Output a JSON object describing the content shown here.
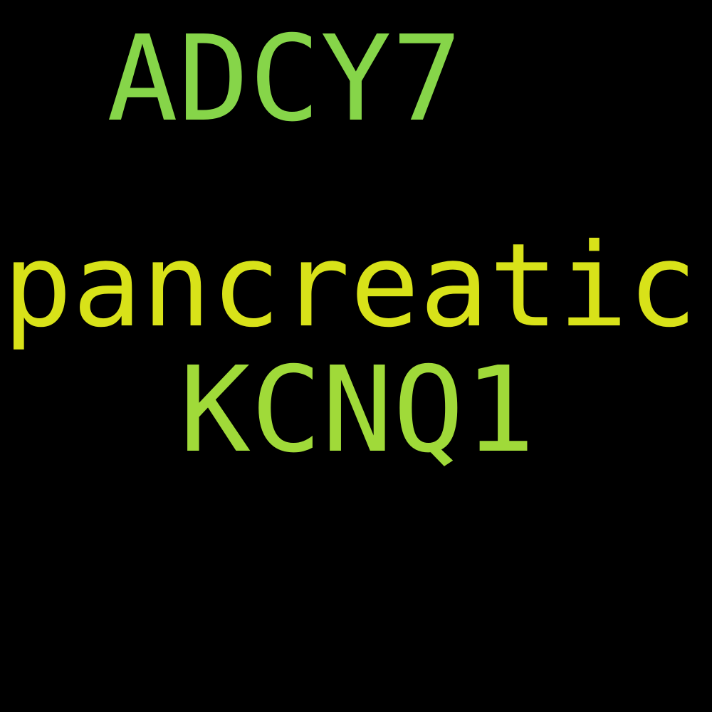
{
  "words": [
    {
      "text": "ADCY7",
      "color": "#86d549"
    },
    {
      "text": "pancreatic",
      "color": "#d8e219"
    },
    {
      "text": "KCNQ1",
      "color": "#a0da39"
    }
  ]
}
